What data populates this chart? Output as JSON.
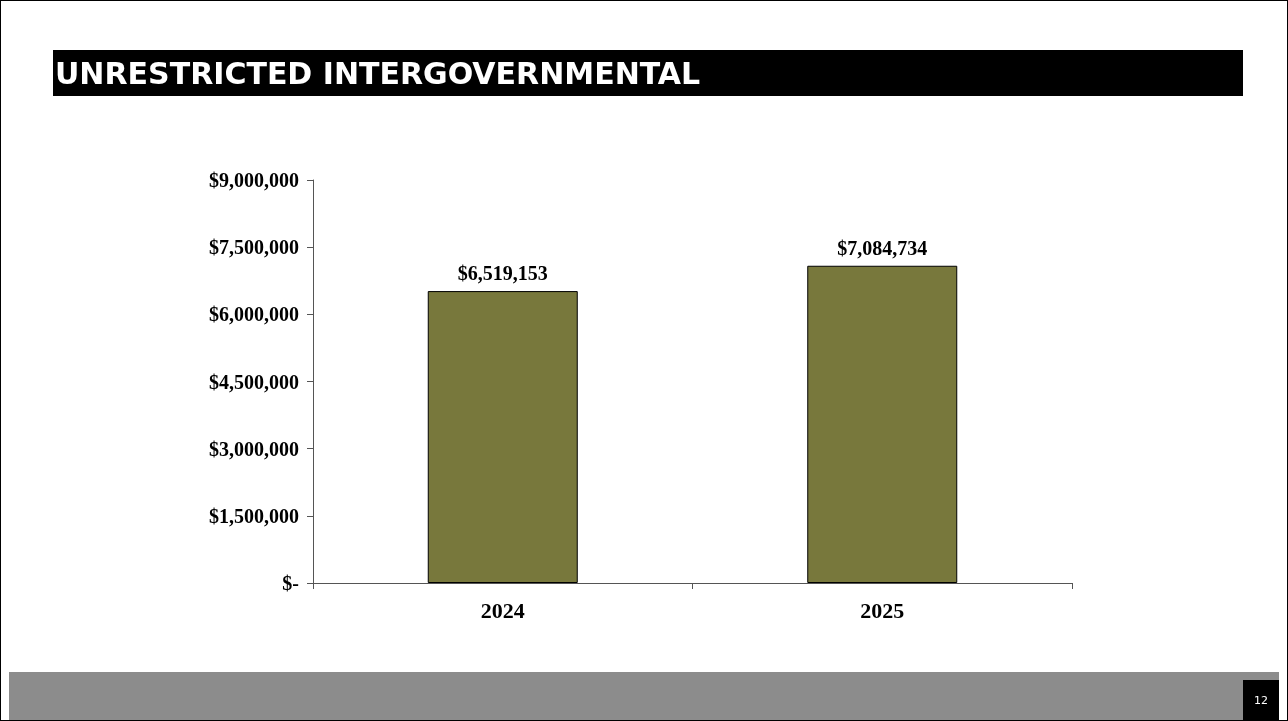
{
  "chart_data": {
    "type": "bar",
    "title": "UNRESTRICTED INTERGOVERNMENTAL",
    "categories": [
      "2024",
      "2025"
    ],
    "values": [
      6519153,
      7084734
    ],
    "value_labels": [
      "$6,519,153",
      "$7,084,734"
    ],
    "color": "#78783c",
    "ylim": [
      0,
      9000000
    ],
    "yticks": [
      {
        "value": 0,
        "label": "$-"
      },
      {
        "value": 1500000,
        "label": "$1,500,000"
      },
      {
        "value": 3000000,
        "label": "$3,000,000"
      },
      {
        "value": 4500000,
        "label": "$4,500,000"
      },
      {
        "value": 6000000,
        "label": "$6,000,000"
      },
      {
        "value": 7500000,
        "label": "$7,500,000"
      },
      {
        "value": 9000000,
        "label": "$9,000,000"
      }
    ],
    "grid": false,
    "annotations": [
      "12"
    ]
  }
}
